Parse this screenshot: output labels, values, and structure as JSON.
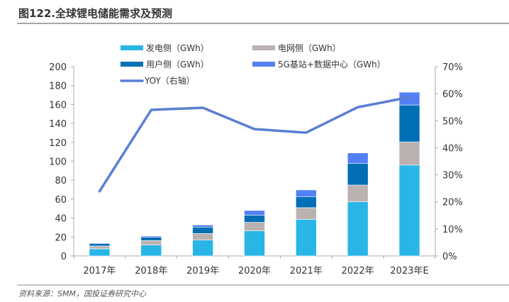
{
  "title": "图122.全球锂电储能需求及预测",
  "source": "资料来源：SMM，国投证券研究中心",
  "chart_data": {
    "type": "bar",
    "stacked": true,
    "title": "图122.全球锂电储能需求及预测",
    "categories": [
      "2017年",
      "2018年",
      "2019年",
      "2020年",
      "2021年",
      "2022年",
      "2023年E"
    ],
    "series": [
      {
        "name": "发电侧（GWh）",
        "color": "#29B6E6",
        "values": [
          7.5,
          11.5,
          16.7,
          26.5,
          38.7,
          57.2,
          96.0
        ]
      },
      {
        "name": "电网侧（GWh）",
        "color": "#BAB2B1",
        "values": [
          3.0,
          4.7,
          7.0,
          9.0,
          12.3,
          17.7,
          24.5
        ]
      },
      {
        "name": "用户侧（GWh）",
        "color": "#006FB5",
        "values": [
          2.5,
          3.5,
          6.8,
          7.5,
          11.4,
          22.7,
          39.0
        ]
      },
      {
        "name": "5G基站+数据中心（GWh）",
        "color": "#5380F5",
        "values": [
          0.7,
          1.3,
          2.2,
          5.0,
          7.3,
          11.2,
          13.5
        ]
      }
    ],
    "line": {
      "name": "YOY（右轴）",
      "color": "#5A7FD3",
      "values": [
        23.9,
        54.0,
        54.8,
        46.9,
        45.6,
        55.0,
        58.7
      ]
    },
    "ylim": [
      0,
      200
    ],
    "yticks": [
      0,
      20,
      40,
      60,
      80,
      100,
      120,
      140,
      160,
      180,
      200
    ],
    "y2lim": [
      0,
      70
    ],
    "y2ticks": [
      "0%",
      "10%",
      "20%",
      "30%",
      "40%",
      "50%",
      "60%",
      "70%"
    ],
    "legend": "top-left"
  }
}
